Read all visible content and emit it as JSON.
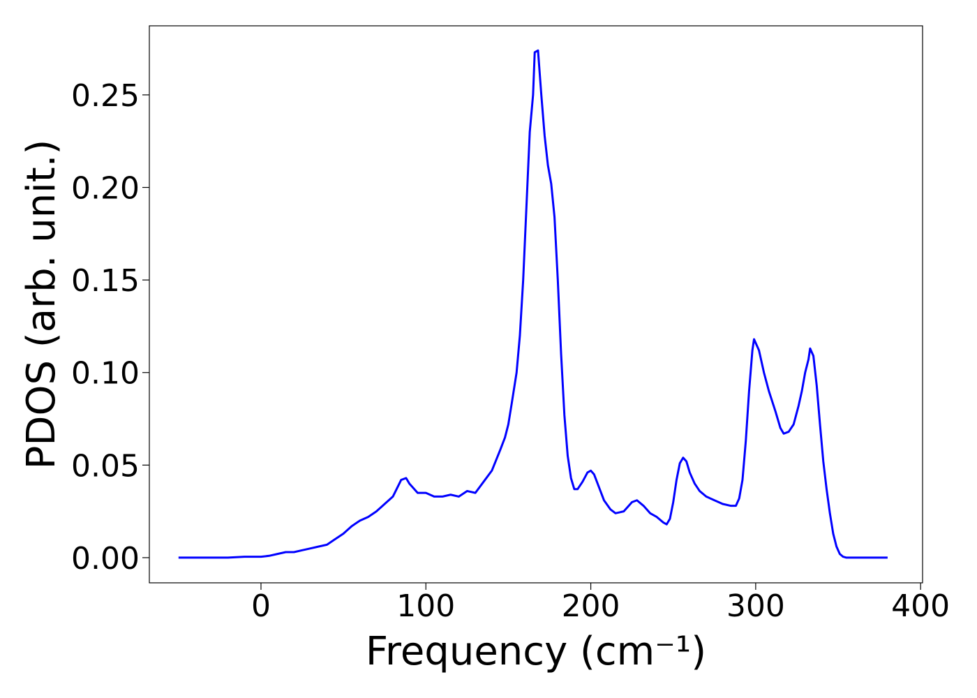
{
  "chart_data": {
    "type": "line",
    "xlabel": "Frequency (cm⁻¹)",
    "ylabel": "PDOS (arb. unit.)",
    "x": [
      -50,
      -20,
      -10,
      0,
      5,
      10,
      15,
      20,
      25,
      30,
      35,
      40,
      45,
      50,
      55,
      60,
      65,
      70,
      75,
      80,
      85,
      88,
      90,
      95,
      100,
      105,
      110,
      115,
      120,
      125,
      130,
      135,
      140,
      145,
      148,
      150,
      152,
      155,
      157,
      159,
      161,
      163,
      165,
      166,
      168,
      170,
      172,
      174,
      176,
      178,
      180,
      182,
      184,
      186,
      188,
      190,
      192,
      195,
      198,
      200,
      202,
      205,
      208,
      212,
      215,
      220,
      225,
      228,
      232,
      236,
      240,
      244,
      246,
      248,
      250,
      252,
      254,
      256,
      258,
      260,
      263,
      266,
      270,
      275,
      280,
      285,
      288,
      290,
      292,
      294,
      296,
      298,
      299,
      302,
      305,
      308,
      312,
      315,
      317,
      320,
      323,
      326,
      328,
      330,
      332,
      333,
      335,
      337,
      339,
      341,
      343,
      345,
      347,
      349,
      351,
      353,
      355,
      360,
      380
    ],
    "series": [
      {
        "name": "PDOS",
        "color": "#0000ff",
        "values": [
          0,
          0,
          0.0005,
          0.0005,
          0.001,
          0.002,
          0.003,
          0.003,
          0.004,
          0.005,
          0.006,
          0.007,
          0.01,
          0.013,
          0.017,
          0.02,
          0.022,
          0.025,
          0.029,
          0.033,
          0.042,
          0.043,
          0.04,
          0.035,
          0.035,
          0.033,
          0.033,
          0.034,
          0.033,
          0.036,
          0.035,
          0.041,
          0.047,
          0.058,
          0.065,
          0.072,
          0.083,
          0.1,
          0.12,
          0.15,
          0.19,
          0.23,
          0.25,
          0.273,
          0.274,
          0.25,
          0.228,
          0.212,
          0.202,
          0.184,
          0.15,
          0.11,
          0.077,
          0.055,
          0.043,
          0.037,
          0.037,
          0.041,
          0.046,
          0.047,
          0.045,
          0.038,
          0.031,
          0.026,
          0.024,
          0.025,
          0.03,
          0.031,
          0.028,
          0.024,
          0.022,
          0.019,
          0.018,
          0.021,
          0.03,
          0.042,
          0.051,
          0.054,
          0.052,
          0.046,
          0.04,
          0.036,
          0.033,
          0.031,
          0.029,
          0.028,
          0.028,
          0.032,
          0.042,
          0.063,
          0.09,
          0.112,
          0.118,
          0.112,
          0.1,
          0.09,
          0.079,
          0.07,
          0.067,
          0.068,
          0.072,
          0.082,
          0.09,
          0.1,
          0.107,
          0.113,
          0.109,
          0.093,
          0.072,
          0.052,
          0.037,
          0.024,
          0.013,
          0.006,
          0.002,
          0.0005,
          0,
          0,
          0
        ]
      }
    ],
    "xlim": [
      -67.7,
      401.2
    ],
    "ylim": [
      -0.0136,
      0.2873
    ],
    "xticks": [
      0,
      100,
      200,
      300,
      400
    ],
    "yticks": [
      {
        "value": 0,
        "label": "0.00"
      },
      {
        "value": 0.05,
        "label": "0.05"
      },
      {
        "value": 0.1,
        "label": "0.10"
      },
      {
        "value": 0.15,
        "label": "0.15"
      },
      {
        "value": 0.2,
        "label": "0.20"
      },
      {
        "value": 0.25,
        "label": "0.25"
      }
    ]
  }
}
